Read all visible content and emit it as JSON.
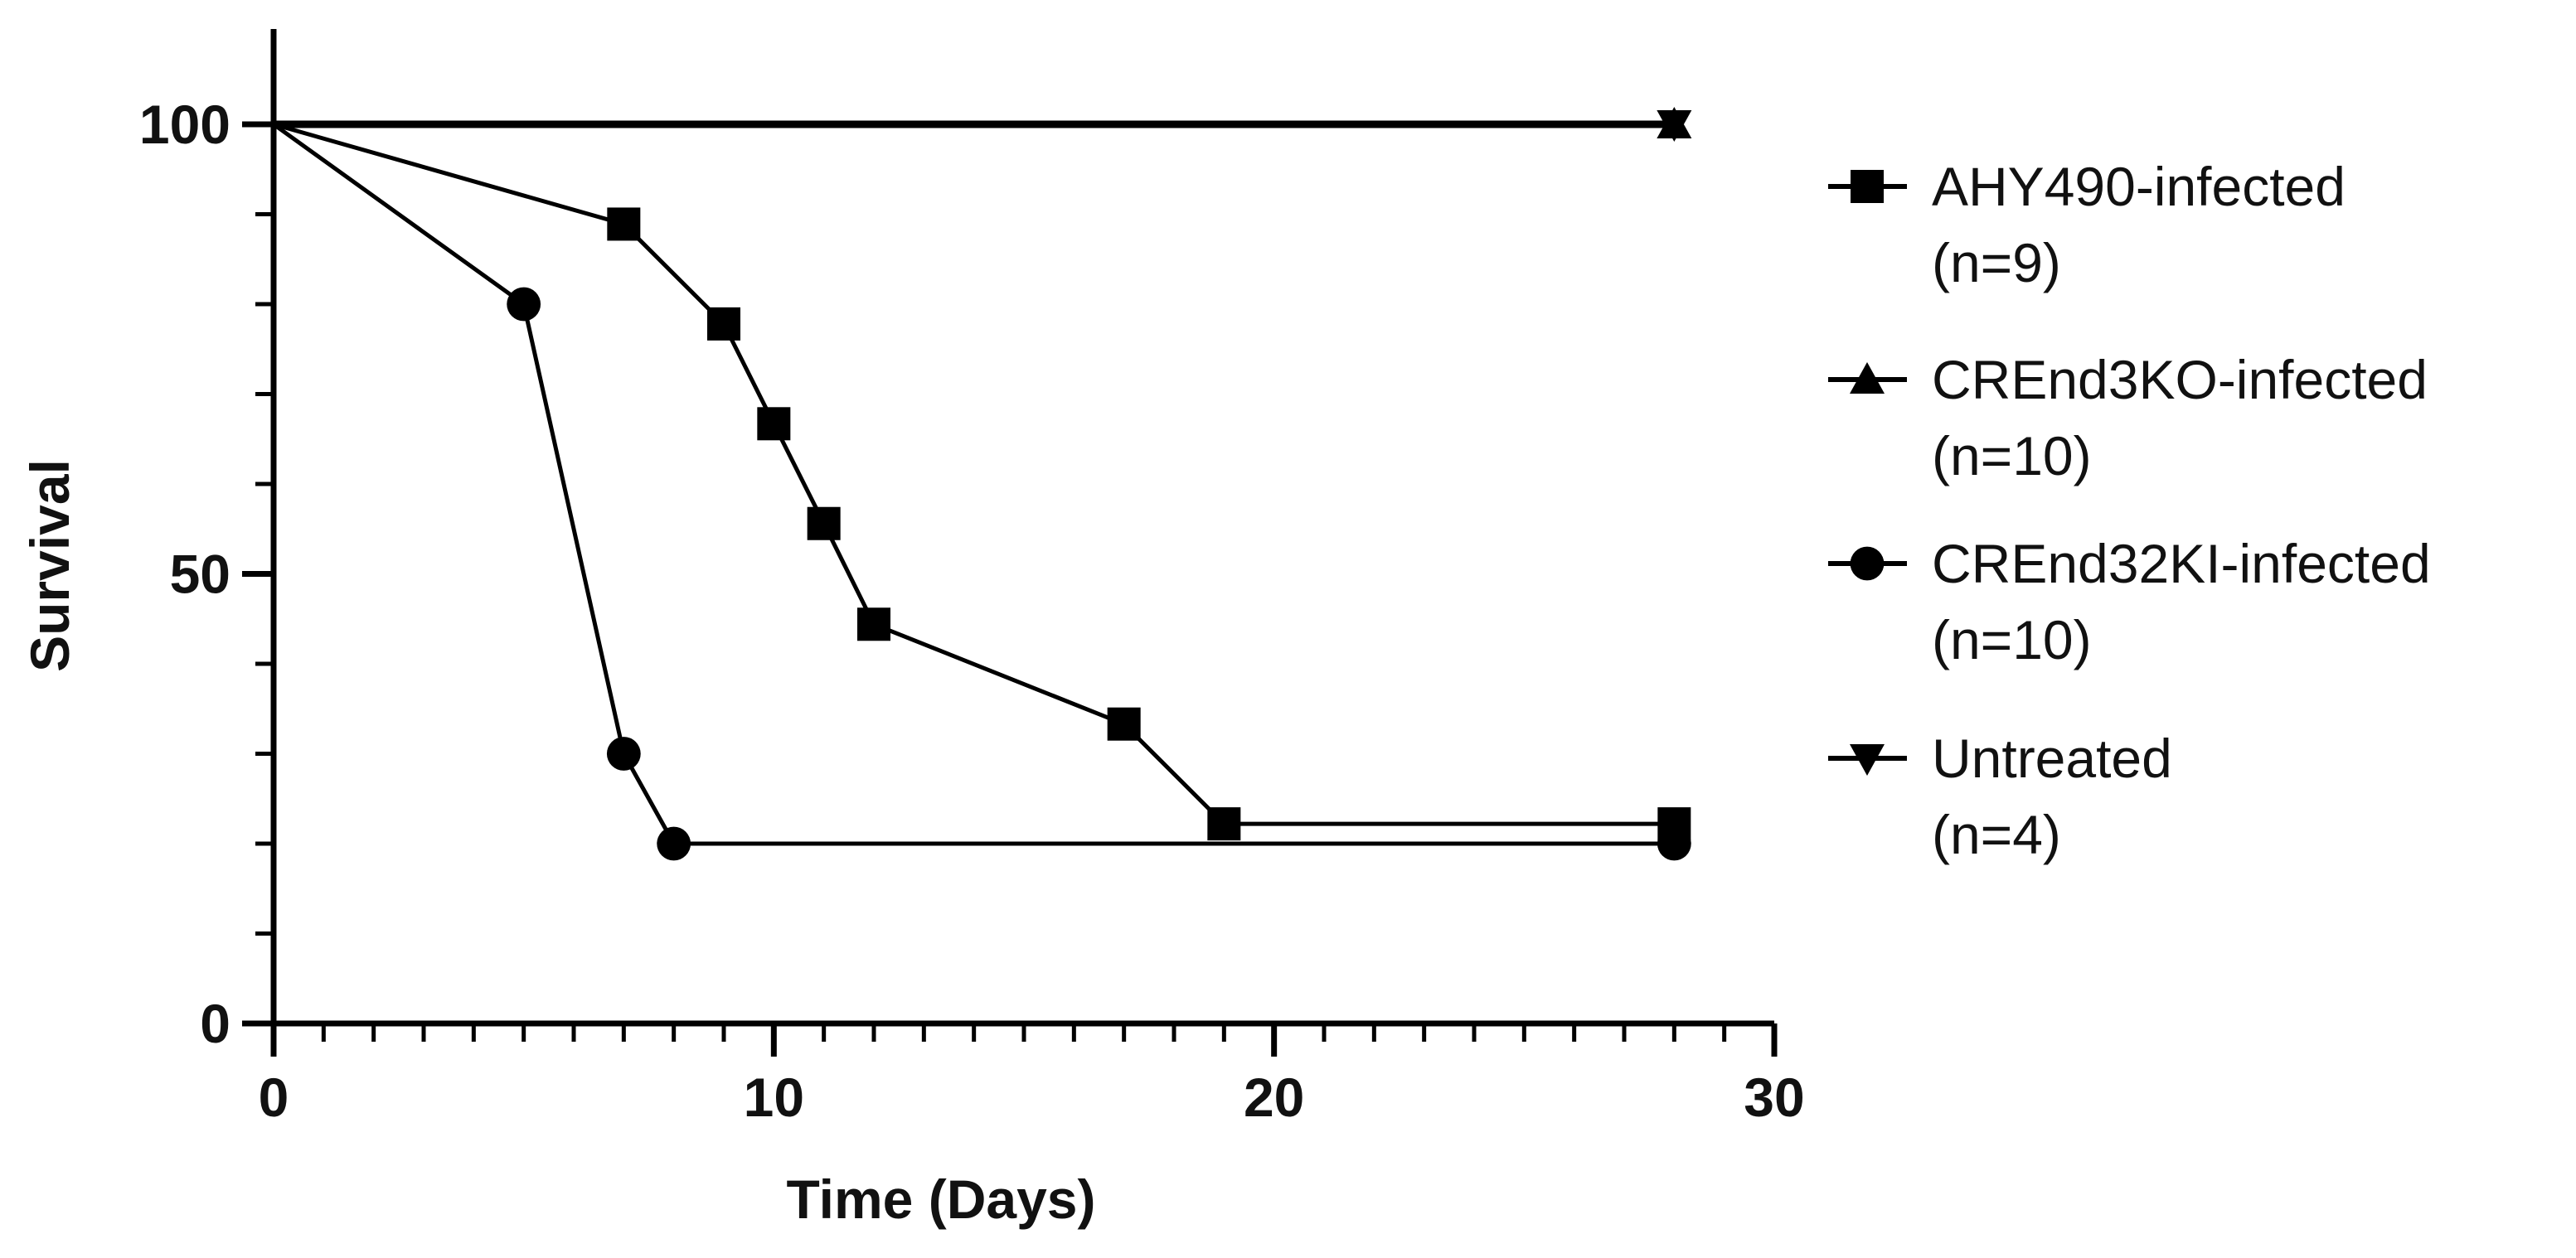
{
  "chart_data": {
    "type": "line",
    "subtype": "kaplan-meier-survival",
    "title": "",
    "xlabel": "Time (Days)",
    "ylabel": "Survival",
    "xlim": [
      0,
      30
    ],
    "ylim": [
      0,
      100
    ],
    "x_ticks": [
      0,
      10,
      20,
      30
    ],
    "y_ticks": [
      0,
      50,
      100
    ],
    "x_minor_tick_step": 1,
    "y_minor_tick_step": 10,
    "grid": false,
    "legend_position": "right",
    "step_style": false,
    "series": [
      {
        "name": "AHY490-infected",
        "n_label": "(n=9)",
        "marker": "square",
        "color": "#000000",
        "points": [
          [
            0,
            100
          ],
          [
            7,
            88.9
          ],
          [
            9,
            77.8
          ],
          [
            10,
            66.7
          ],
          [
            11,
            55.6
          ],
          [
            12,
            44.4
          ],
          [
            17,
            33.3
          ],
          [
            19,
            22.2
          ],
          [
            28,
            22.2
          ]
        ]
      },
      {
        "name": "CREnd3KO-infected",
        "n_label": "(n=10)",
        "marker": "triangle-up",
        "color": "#000000",
        "points": [
          [
            0,
            100
          ],
          [
            28,
            100
          ]
        ]
      },
      {
        "name": "CREnd32KI-infected",
        "n_label": "(n=10)",
        "marker": "circle",
        "color": "#000000",
        "points": [
          [
            0,
            100
          ],
          [
            5,
            80
          ],
          [
            7,
            30
          ],
          [
            8,
            20
          ],
          [
            28,
            20
          ]
        ]
      },
      {
        "name": "Untreated",
        "n_label": "(n=4)",
        "marker": "triangle-down",
        "color": "#000000",
        "points": [
          [
            0,
            100
          ],
          [
            28,
            100
          ]
        ]
      }
    ]
  }
}
